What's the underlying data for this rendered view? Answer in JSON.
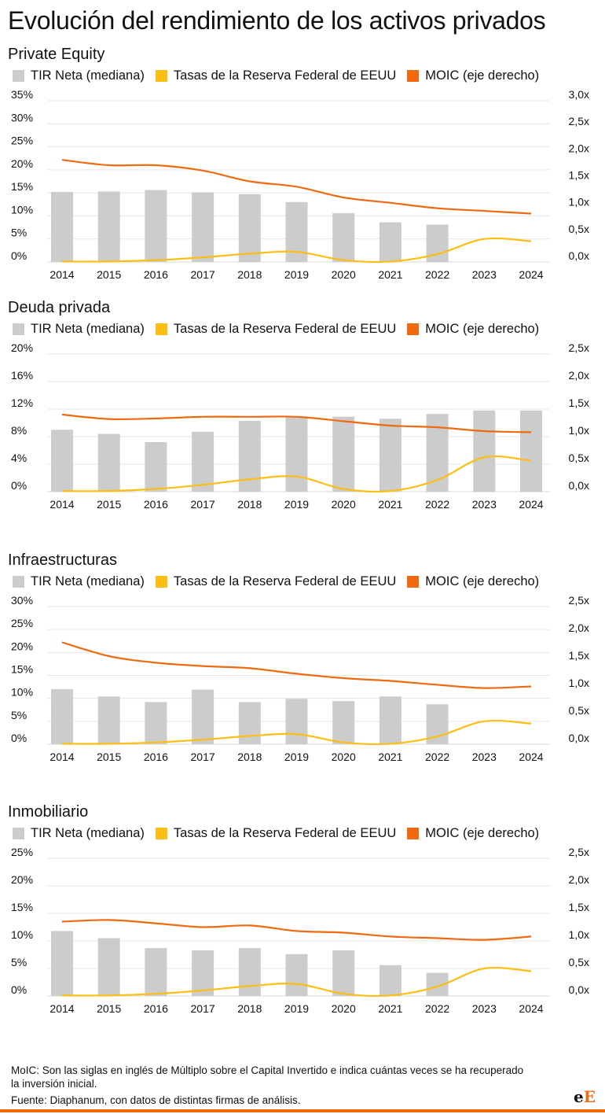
{
  "title": "Evolución del rendimiento de los activos privados",
  "legend": {
    "irr": "TIR Neta (mediana)",
    "fed": "Tasas de la Reserva Federal de EEUU",
    "moic": "MOIC (eje derecho)"
  },
  "colors": {
    "irr": "#cccccc",
    "fed": "#fdbe14",
    "moic": "#f06a10"
  },
  "footnote": "MoIC: Son las siglas en inglés de Múltiplo sobre el Capital Invertido e indica cuántas veces se ha recuperado la inversión inicial.",
  "source": "Fuente: Diaphanum, con datos de distintas firmas de análisis.",
  "logo": "eE",
  "chart_data": [
    {
      "type": "bar",
      "title": "Private Equity",
      "categories": [
        "2014",
        "2015",
        "2016",
        "2017",
        "2018",
        "2019",
        "2020",
        "2021",
        "2022",
        "2023",
        "2024"
      ],
      "left_ticks": [
        "0%",
        "5%",
        "10%",
        "15%",
        "20%",
        "25%",
        "30%",
        "35%"
      ],
      "right_ticks": [
        "0,0x",
        "0,5x",
        "1,0x",
        "1,5x",
        "2,0x",
        "2,5x",
        "3,0x"
      ],
      "ylim": [
        0,
        35
      ],
      "y2lim": [
        0,
        3.0
      ],
      "grid": true,
      "legend_position": "top",
      "series": [
        {
          "key": "irr",
          "type": "bar",
          "values": [
            15.2,
            15.3,
            15.6,
            15.1,
            14.7,
            13.0,
            10.6,
            8.6,
            8.1,
            null,
            null
          ]
        },
        {
          "key": "fed",
          "type": "line",
          "axis": "left",
          "values": [
            0.1,
            0.1,
            0.4,
            1.0,
            1.8,
            2.2,
            0.4,
            0.1,
            1.7,
            5.0,
            4.5
          ]
        },
        {
          "key": "moic",
          "type": "line",
          "axis": "right",
          "values": [
            1.9,
            1.8,
            1.8,
            1.7,
            1.5,
            1.4,
            1.2,
            1.1,
            1.0,
            0.95,
            0.9
          ]
        }
      ]
    },
    {
      "type": "bar",
      "title": "Deuda privada",
      "categories": [
        "2014",
        "2015",
        "2016",
        "2017",
        "2018",
        "2019",
        "2020",
        "2021",
        "2022",
        "2023",
        "2024"
      ],
      "left_ticks": [
        "0%",
        "4%",
        "8%",
        "12%",
        "16%",
        "20%"
      ],
      "right_ticks": [
        "0,0x",
        "0,5x",
        "1,0x",
        "1,5x",
        "2,0x",
        "2,5x"
      ],
      "ylim": [
        0,
        20
      ],
      "y2lim": [
        0,
        2.5
      ],
      "grid": true,
      "legend_position": "top",
      "series": [
        {
          "key": "irr",
          "type": "bar",
          "values": [
            9.0,
            8.4,
            7.2,
            8.7,
            10.3,
            10.9,
            10.9,
            10.6,
            11.3,
            11.8,
            11.8
          ]
        },
        {
          "key": "fed",
          "type": "line",
          "axis": "left",
          "values": [
            0.1,
            0.1,
            0.4,
            1.0,
            1.8,
            2.2,
            0.4,
            0.1,
            1.7,
            5.0,
            4.5
          ]
        },
        {
          "key": "moic",
          "type": "line",
          "axis": "right",
          "values": [
            1.4,
            1.32,
            1.33,
            1.36,
            1.36,
            1.36,
            1.28,
            1.2,
            1.17,
            1.1,
            1.08
          ]
        }
      ]
    },
    {
      "type": "bar",
      "title": "Infraestructuras",
      "categories": [
        "2014",
        "2015",
        "2016",
        "2017",
        "2018",
        "2019",
        "2020",
        "2021",
        "2022",
        "2023",
        "2024"
      ],
      "left_ticks": [
        "0%",
        "5%",
        "10%",
        "15%",
        "20%",
        "25%",
        "30%"
      ],
      "right_ticks": [
        "0,0x",
        "0,5x",
        "1,0x",
        "1,5x",
        "2,0x",
        "2,5x"
      ],
      "ylim": [
        0,
        30
      ],
      "y2lim": [
        0,
        2.5
      ],
      "grid": true,
      "legend_position": "top",
      "series": [
        {
          "key": "irr",
          "type": "bar",
          "values": [
            12.0,
            10.4,
            9.2,
            11.9,
            9.2,
            9.9,
            9.4,
            10.4,
            8.7,
            null,
            null
          ]
        },
        {
          "key": "fed",
          "type": "line",
          "axis": "left",
          "values": [
            0.1,
            0.1,
            0.4,
            1.0,
            1.8,
            2.2,
            0.4,
            0.1,
            1.7,
            5.0,
            4.5
          ]
        },
        {
          "key": "moic",
          "type": "line",
          "axis": "right",
          "values": [
            1.85,
            1.6,
            1.48,
            1.42,
            1.38,
            1.28,
            1.2,
            1.15,
            1.08,
            1.02,
            1.05
          ]
        }
      ]
    },
    {
      "type": "bar",
      "title": "Inmobiliario",
      "categories": [
        "2014",
        "2015",
        "2016",
        "2017",
        "2018",
        "2019",
        "2020",
        "2021",
        "2022",
        "2023",
        "2024"
      ],
      "left_ticks": [
        "0%",
        "5%",
        "10%",
        "15%",
        "20%",
        "25%"
      ],
      "right_ticks": [
        "0,0x",
        "0,5x",
        "1,0x",
        "1,5x",
        "2,0x",
        "2,5x"
      ],
      "ylim": [
        0,
        25
      ],
      "y2lim": [
        0,
        2.5
      ],
      "grid": true,
      "legend_position": "top",
      "series": [
        {
          "key": "irr",
          "type": "bar",
          "values": [
            11.8,
            10.5,
            8.7,
            8.3,
            8.7,
            7.6,
            8.3,
            5.6,
            4.2,
            null,
            null
          ]
        },
        {
          "key": "fed",
          "type": "line",
          "axis": "left",
          "values": [
            0.1,
            0.1,
            0.4,
            1.0,
            1.8,
            2.2,
            0.4,
            0.1,
            1.7,
            5.0,
            4.5
          ]
        },
        {
          "key": "moic",
          "type": "line",
          "axis": "right",
          "values": [
            1.35,
            1.38,
            1.32,
            1.25,
            1.28,
            1.18,
            1.15,
            1.08,
            1.05,
            1.02,
            1.08
          ]
        }
      ]
    }
  ]
}
